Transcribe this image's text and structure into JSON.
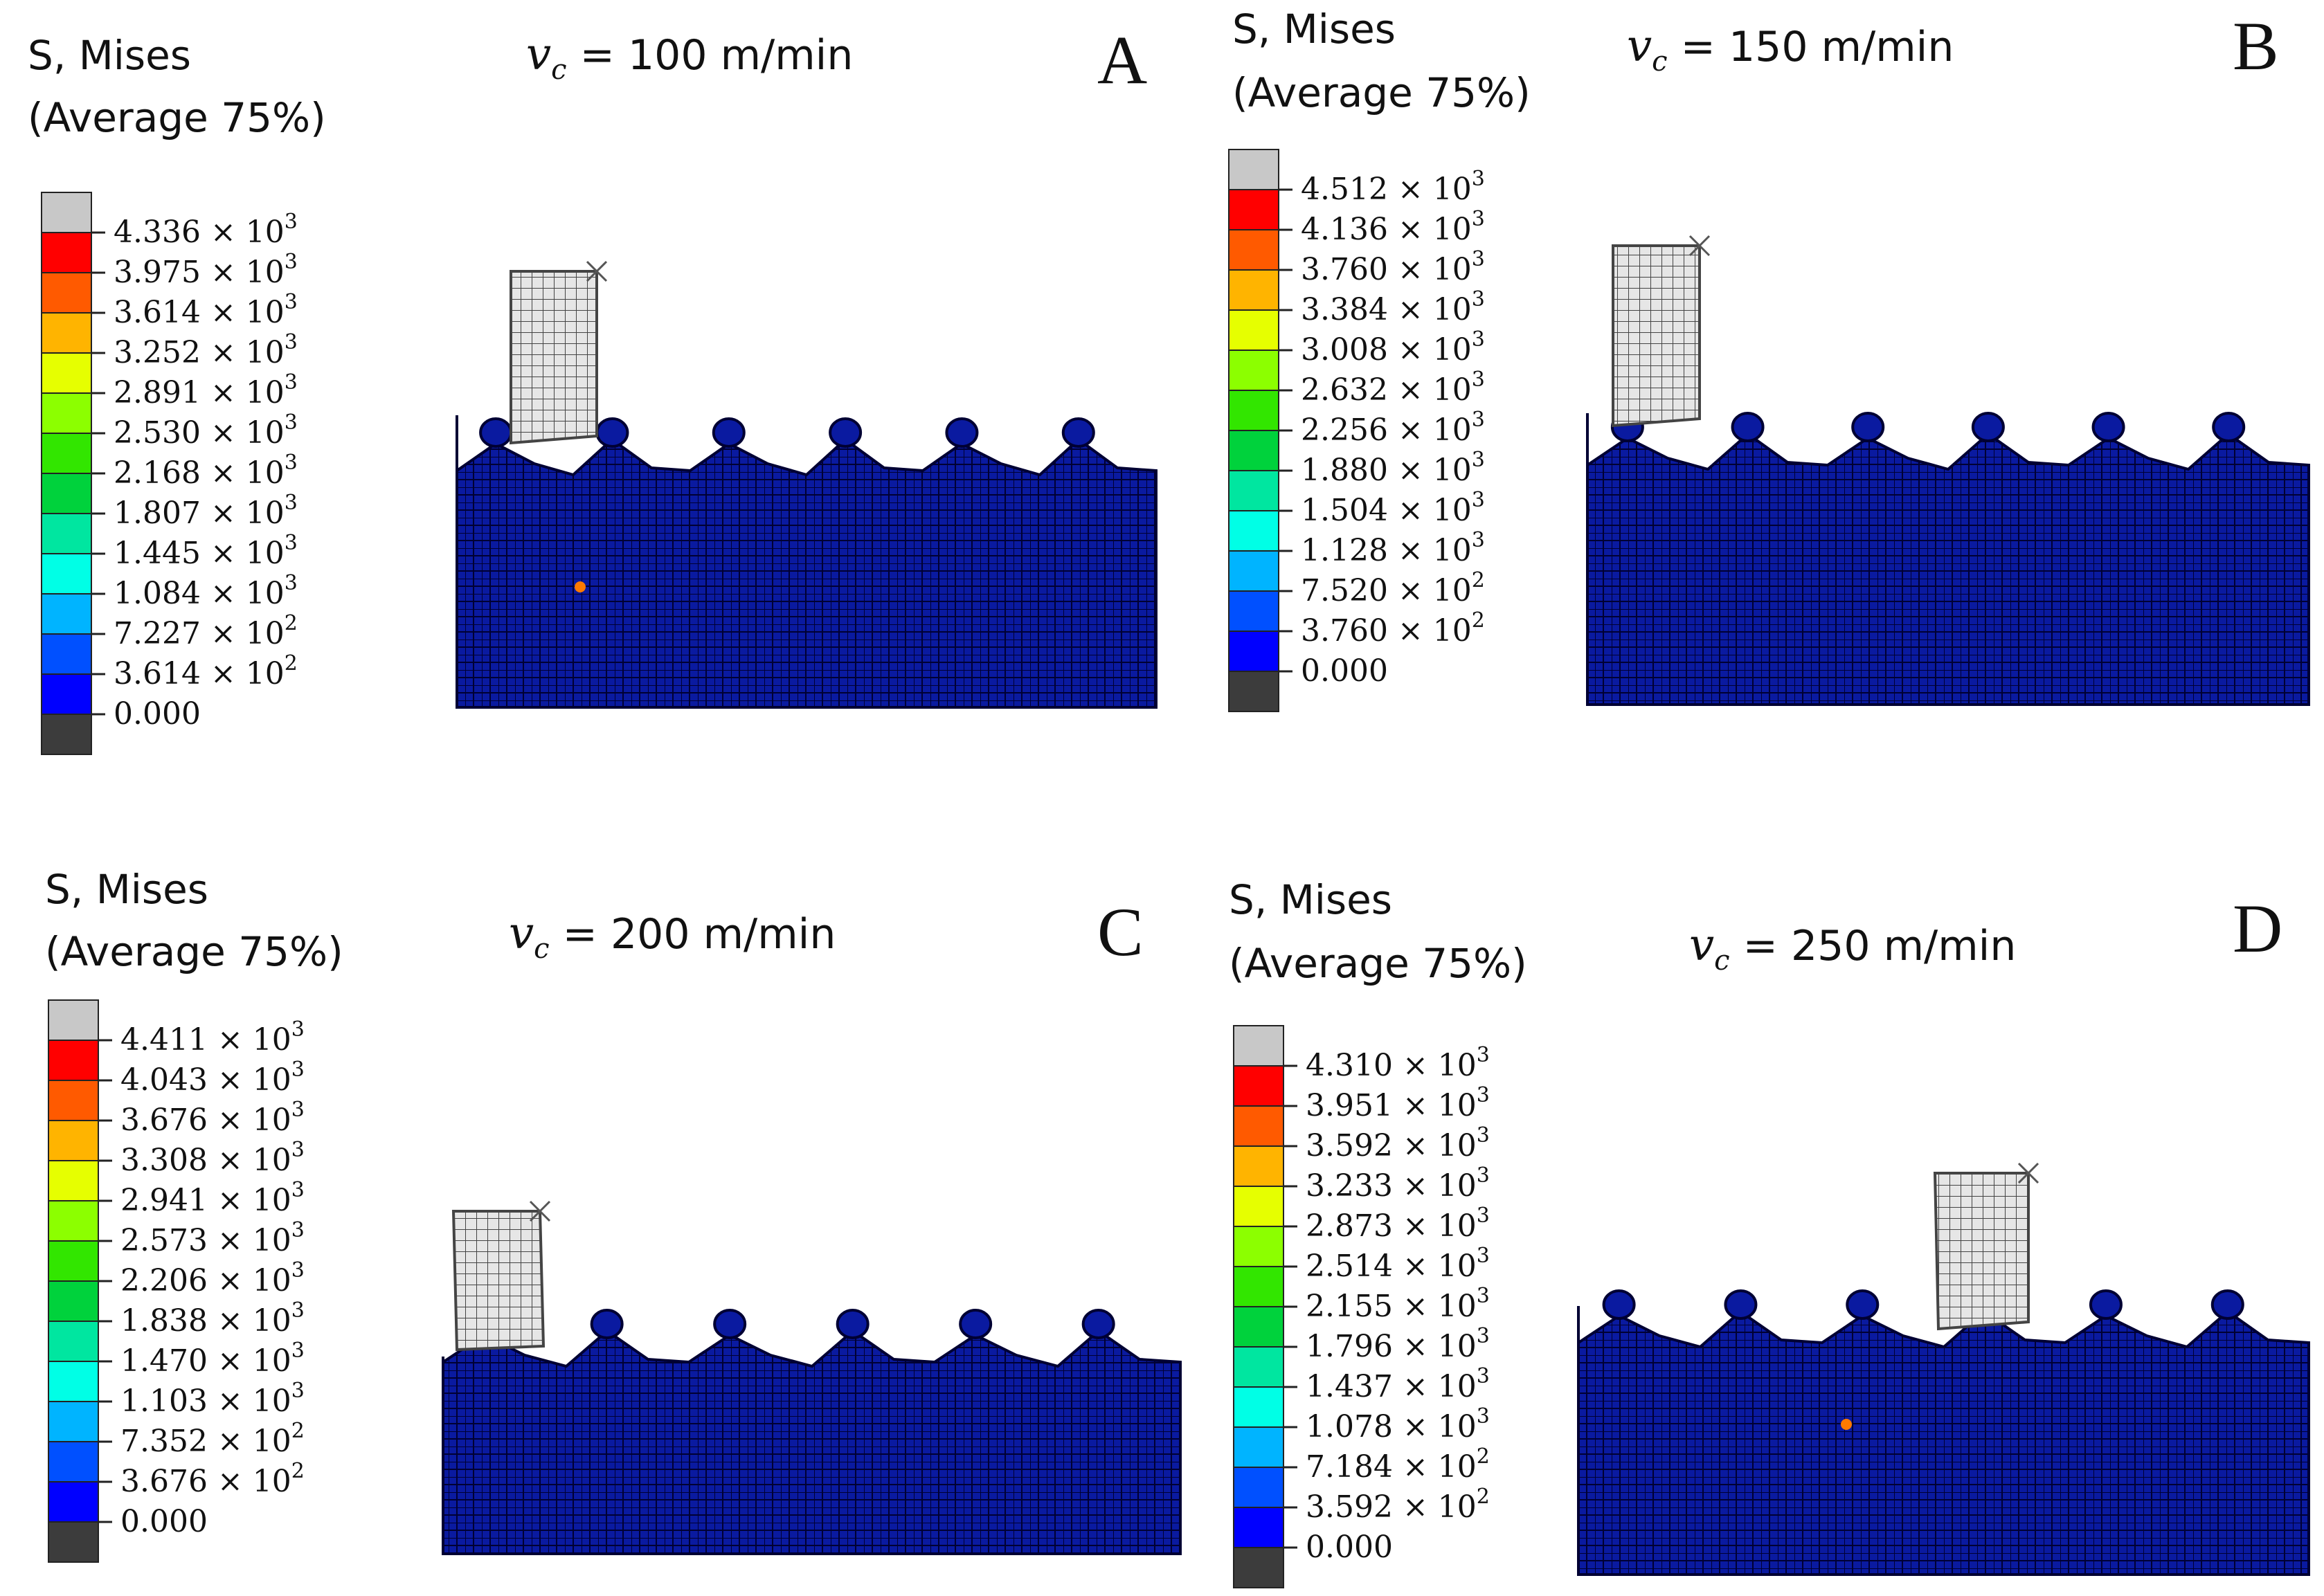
{
  "colors": {
    "legend": [
      "#c8c8c8",
      "#ff0000",
      "#ff5a00",
      "#ffb400",
      "#e6ff00",
      "#8cff00",
      "#32e600",
      "#00d23c",
      "#00e6a0",
      "#00ffe6",
      "#00b4ff",
      "#0050ff",
      "#0000ff",
      "#3c3c3c"
    ],
    "mesh_fill": "#0a1aa0",
    "mesh_line": "#000033",
    "tool_fill": "#e6e6e6",
    "tool_line": "#444444",
    "hotspot": "#ff7a00"
  },
  "panels": [
    {
      "letter": "A",
      "title_line1": "S, Mises",
      "title_line2": "(Average 75%)",
      "vc_symbol": "v",
      "vc_sub": "c",
      "vc_text": " = 100 m/min",
      "ticks": [
        {
          "v": "4.336",
          "e": "3"
        },
        {
          "v": "3.975",
          "e": "3"
        },
        {
          "v": "3.614",
          "e": "3"
        },
        {
          "v": "3.252",
          "e": "3"
        },
        {
          "v": "2.891",
          "e": "3"
        },
        {
          "v": "2.530",
          "e": "3"
        },
        {
          "v": "2.168",
          "e": "3"
        },
        {
          "v": "1.807",
          "e": "3"
        },
        {
          "v": "1.445",
          "e": "3"
        },
        {
          "v": "1.084",
          "e": "3"
        },
        {
          "v": "7.227",
          "e": "2"
        },
        {
          "v": "3.614",
          "e": "2"
        },
        {
          "v": "0.000",
          "e": ""
        }
      ]
    },
    {
      "letter": "B",
      "title_line1": "S, Mises",
      "title_line2": "(Average 75%)",
      "vc_symbol": "v",
      "vc_sub": "c",
      "vc_text": " = 150 m/min",
      "ticks": [
        {
          "v": "4.512",
          "e": "3"
        },
        {
          "v": "4.136",
          "e": "3"
        },
        {
          "v": "3.760",
          "e": "3"
        },
        {
          "v": "3.384",
          "e": "3"
        },
        {
          "v": "3.008",
          "e": "3"
        },
        {
          "v": "2.632",
          "e": "3"
        },
        {
          "v": "2.256",
          "e": "3"
        },
        {
          "v": "1.880",
          "e": "3"
        },
        {
          "v": "1.504",
          "e": "3"
        },
        {
          "v": "1.128",
          "e": "3"
        },
        {
          "v": "7.520",
          "e": "2"
        },
        {
          "v": "3.760",
          "e": "2"
        },
        {
          "v": "0.000",
          "e": ""
        }
      ]
    },
    {
      "letter": "C",
      "title_line1": "S, Mises",
      "title_line2": "(Average 75%)",
      "vc_symbol": "v",
      "vc_sub": "c",
      "vc_text": " = 200 m/min",
      "ticks": [
        {
          "v": "4.411",
          "e": "3"
        },
        {
          "v": "4.043",
          "e": "3"
        },
        {
          "v": "3.676",
          "e": "3"
        },
        {
          "v": "3.308",
          "e": "3"
        },
        {
          "v": "2.941",
          "e": "3"
        },
        {
          "v": "2.573",
          "e": "3"
        },
        {
          "v": "2.206",
          "e": "3"
        },
        {
          "v": "1.838",
          "e": "3"
        },
        {
          "v": "1.470",
          "e": "3"
        },
        {
          "v": "1.103",
          "e": "3"
        },
        {
          "v": "7.352",
          "e": "2"
        },
        {
          "v": "3.676",
          "e": "2"
        },
        {
          "v": "0.000",
          "e": ""
        }
      ]
    },
    {
      "letter": "D",
      "title_line1": "S, Mises",
      "title_line2": "(Average 75%)",
      "vc_symbol": "v",
      "vc_sub": "c",
      "vc_text": " = 250 m/min",
      "ticks": [
        {
          "v": "4.310",
          "e": "3"
        },
        {
          "v": "3.951",
          "e": "3"
        },
        {
          "v": "3.592",
          "e": "3"
        },
        {
          "v": "3.233",
          "e": "3"
        },
        {
          "v": "2.873",
          "e": "3"
        },
        {
          "v": "2.514",
          "e": "3"
        },
        {
          "v": "2.155",
          "e": "3"
        },
        {
          "v": "1.796",
          "e": "3"
        },
        {
          "v": "1.437",
          "e": "3"
        },
        {
          "v": "1.078",
          "e": "3"
        },
        {
          "v": "7.184",
          "e": "2"
        },
        {
          "v": "3.592",
          "e": "2"
        },
        {
          "v": "0.000",
          "e": ""
        }
      ]
    }
  ]
}
